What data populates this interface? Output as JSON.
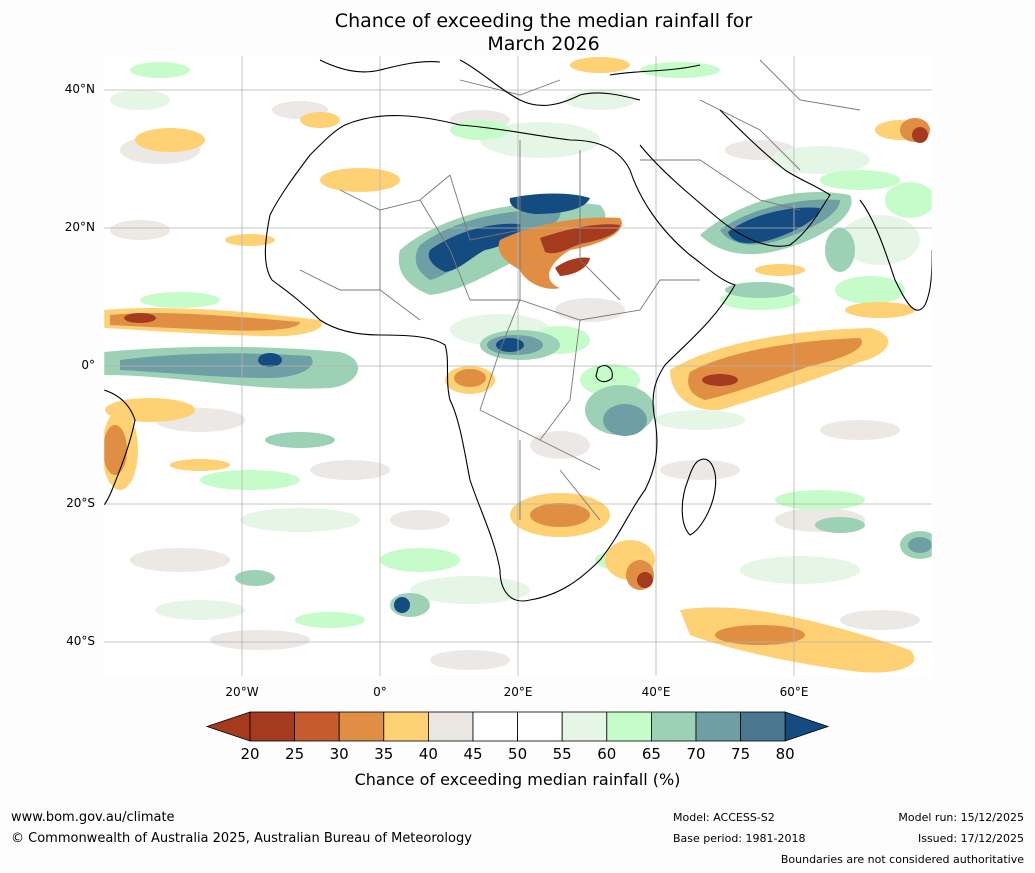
{
  "title": {
    "line1": "Chance of exceeding the median rainfall for",
    "line2": "March 2026"
  },
  "map": {
    "latitude_labels": [
      "40°N",
      "20°N",
      "0°",
      "20°S",
      "40°S"
    ],
    "longitude_labels": [
      "20°W",
      "0°",
      "20°E",
      "40°E",
      "60°E"
    ],
    "colors": {
      "c20": "#a53a1f",
      "c25": "#c65b2f",
      "c30": "#df8e44",
      "c35": "#fdd174",
      "c40": "#eae6e2",
      "c45": "#ffffff",
      "c50": "#ffffff",
      "c55": "#e5f6e6",
      "c60": "#c6fcc9",
      "c65": "#9cd1b6",
      "c70": "#6e9fa4",
      "c75": "#4a778f",
      "c80": "#144c82",
      "land_border": "#000000",
      "country_border": "#777777",
      "grid": "#b4b4b4"
    }
  },
  "colorbar": {
    "ticks": [
      "20",
      "25",
      "30",
      "35",
      "40",
      "45",
      "50",
      "55",
      "60",
      "65",
      "70",
      "75",
      "80"
    ],
    "label": "Chance of exceeding median rainfall (%)"
  },
  "footer": {
    "website": "www.bom.gov.au/climate",
    "copyright": "© Commonwealth of Australia 2025, Australian Bureau of Meteorology",
    "model": "Model: ACCESS-S2",
    "base_period": "Base period: 1981-2018",
    "model_run": "Model run: 15/12/2025",
    "issued": "Issued: 17/12/2025",
    "disclaimer": "Boundaries are not considered authoritative"
  }
}
